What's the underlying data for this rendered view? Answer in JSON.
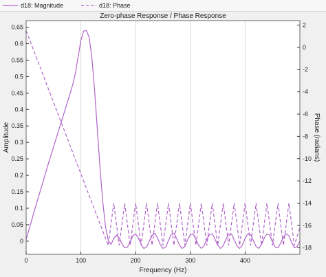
{
  "legend": {
    "items": [
      {
        "label": "d18: Magnitude",
        "style": "solid"
      },
      {
        "label": "d18: Phase",
        "style": "dashed"
      }
    ]
  },
  "colors": {
    "series": "#b063c9",
    "background": "#f0f0f0",
    "plot_background": "#ffffff",
    "grid": "#d9d9d9",
    "axis": "#333333"
  },
  "chart_data": {
    "type": "line",
    "title": "Zero-phase Response / Phase Response",
    "xlabel": "Frequency (Hz)",
    "ylabel_left": "Amplitude",
    "ylabel_right": "Phase (radians)",
    "xlim": [
      0,
      500
    ],
    "ylim_left": [
      -0.04,
      0.67
    ],
    "ylim_right": [
      -18.6,
      2.4
    ],
    "x_ticks": [
      0,
      100,
      200,
      300,
      400
    ],
    "y_ticks_left": [
      0,
      0.05,
      0.1,
      0.15,
      0.2,
      0.25,
      0.3,
      0.35,
      0.4,
      0.45,
      0.5,
      0.55,
      0.6,
      0.65
    ],
    "y_ticks_right": [
      2,
      0,
      -2,
      -4,
      -6,
      -8,
      -10,
      -12,
      -14,
      -16,
      -18
    ],
    "grid": "vertical",
    "series": [
      {
        "name": "d18: Magnitude",
        "axis": "left",
        "style": "solid",
        "x": [
          0,
          5,
          10,
          15,
          20,
          25,
          30,
          35,
          40,
          45,
          50,
          55,
          60,
          65,
          70,
          75,
          80,
          85,
          90,
          95,
          100,
          105,
          110,
          115,
          120,
          125,
          130,
          135,
          140,
          145,
          150,
          155,
          160,
          165,
          170,
          175,
          180,
          185,
          190,
          195,
          200,
          205,
          210,
          215,
          220,
          225,
          230,
          235,
          240,
          245,
          250,
          255,
          260,
          265,
          270,
          275,
          280,
          285,
          290,
          295,
          300,
          305,
          310,
          315,
          320,
          325,
          330,
          335,
          340,
          345,
          350,
          355,
          360,
          365,
          370,
          375,
          380,
          385,
          390,
          395,
          400,
          405,
          410,
          415,
          420,
          425,
          430,
          435,
          440,
          445,
          450,
          455,
          460,
          465,
          470,
          475,
          480,
          485,
          490,
          495,
          500
        ],
        "values": [
          0.005,
          0.034,
          0.063,
          0.092,
          0.12,
          0.148,
          0.176,
          0.204,
          0.232,
          0.259,
          0.286,
          0.313,
          0.34,
          0.366,
          0.393,
          0.42,
          0.447,
          0.475,
          0.51,
          0.56,
          0.61,
          0.638,
          0.64,
          0.62,
          0.56,
          0.46,
          0.34,
          0.22,
          0.12,
          0.045,
          0.002,
          -0.01,
          0.008,
          0.018,
          0.01,
          -0.008,
          -0.02,
          -0.018,
          -0.002,
          0.016,
          0.022,
          0.01,
          -0.01,
          -0.022,
          -0.018,
          0.0,
          0.018,
          0.024,
          0.01,
          -0.01,
          -0.022,
          -0.018,
          0.002,
          0.02,
          0.024,
          0.008,
          -0.012,
          -0.022,
          -0.016,
          0.004,
          0.02,
          0.022,
          0.006,
          -0.012,
          -0.022,
          -0.014,
          0.006,
          0.02,
          0.022,
          0.006,
          -0.012,
          -0.022,
          -0.014,
          0.006,
          0.021,
          0.022,
          0.004,
          -0.014,
          -0.022,
          -0.012,
          0.008,
          0.022,
          0.02,
          0.002,
          -0.016,
          -0.022,
          -0.01,
          0.01,
          0.022,
          0.018,
          -0.002,
          -0.018,
          -0.02,
          -0.006,
          0.012,
          0.022,
          0.016,
          -0.004,
          -0.02,
          -0.016,
          0.0
        ]
      },
      {
        "name": "d18: Phase",
        "axis": "right",
        "style": "dashed",
        "x": [
          0,
          150,
          150,
          160,
          160,
          170,
          170,
          180,
          180,
          190,
          190,
          200,
          200,
          210,
          210,
          220,
          220,
          230,
          230,
          240,
          240,
          250,
          250,
          260,
          260,
          270,
          270,
          280,
          280,
          290,
          290,
          300,
          300,
          310,
          310,
          320,
          320,
          330,
          330,
          340,
          340,
          350,
          350,
          360,
          360,
          370,
          370,
          380,
          380,
          390,
          390,
          400,
          400,
          410,
          410,
          420,
          420,
          430,
          430,
          440,
          440,
          450,
          450,
          460,
          460,
          470,
          470,
          480,
          480,
          490,
          490,
          500
        ],
        "values": [
          1.5,
          -17.8,
          -17.8,
          -14.0,
          -14.0,
          -17.8,
          -17.8,
          -14.0,
          -14.0,
          -17.8,
          -17.8,
          -14.0,
          -14.0,
          -17.8,
          -17.8,
          -14.0,
          -14.0,
          -17.8,
          -17.8,
          -14.0,
          -14.0,
          -17.8,
          -17.8,
          -14.0,
          -14.0,
          -17.8,
          -17.8,
          -14.0,
          -14.0,
          -17.8,
          -17.8,
          -14.0,
          -14.0,
          -17.8,
          -17.8,
          -14.0,
          -14.0,
          -17.8,
          -17.8,
          -14.0,
          -14.0,
          -17.8,
          -17.8,
          -14.0,
          -14.0,
          -17.8,
          -17.8,
          -14.0,
          -14.0,
          -17.8,
          -17.8,
          -14.0,
          -14.0,
          -17.8,
          -17.8,
          -14.0,
          -14.0,
          -17.8,
          -17.8,
          -14.0,
          -14.0,
          -17.8,
          -17.8,
          -14.0,
          -14.0,
          -17.8,
          -17.8,
          -14.0,
          -14.0,
          -17.8,
          -17.8,
          -16.2
        ]
      }
    ]
  }
}
